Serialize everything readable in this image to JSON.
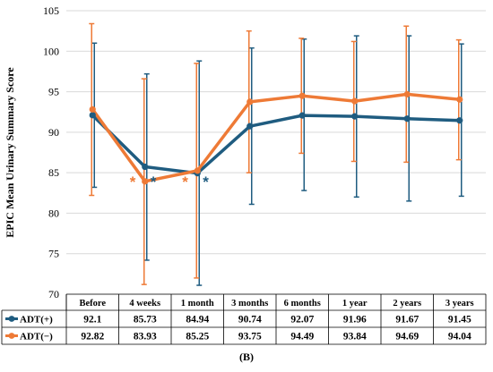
{
  "chart_data": {
    "type": "line",
    "ylabel": "EPIC Mean Urinary Summary Score",
    "xlabel": "",
    "ylim": [
      70,
      105
    ],
    "yticks": [
      70,
      75,
      80,
      85,
      90,
      95,
      100,
      105
    ],
    "grid": true,
    "categories": [
      "Before",
      "4 weeks",
      "1 month",
      "3 months",
      "6 months",
      "1 year",
      "2 years",
      "3 years"
    ],
    "series": [
      {
        "name": "ADT(+)",
        "color": "#1f5c80",
        "values": [
          92.1,
          85.73,
          84.94,
          90.74,
          92.07,
          91.96,
          91.67,
          91.45
        ],
        "value_labels": [
          "92.1",
          "85.73",
          "84.94",
          "90.74",
          "92.07",
          "91.96",
          "91.67",
          "91.45"
        ],
        "error_upper": [
          101.0,
          97.2,
          98.8,
          100.4,
          101.5,
          101.9,
          101.9,
          100.9
        ],
        "error_lower": [
          83.2,
          74.2,
          71.1,
          81.1,
          82.8,
          82.0,
          81.5,
          82.1
        ]
      },
      {
        "name": "ADT(−)",
        "color": "#ee7a36",
        "values": [
          92.82,
          83.93,
          85.25,
          93.75,
          94.49,
          93.84,
          94.69,
          94.04
        ],
        "value_labels": [
          "92.82",
          "83.93",
          "85.25",
          "93.75",
          "94.49",
          "93.84",
          "94.69",
          "94.04"
        ],
        "error_upper": [
          103.4,
          96.6,
          98.5,
          102.5,
          101.6,
          101.2,
          103.1,
          101.4
        ],
        "error_lower": [
          82.2,
          71.2,
          72.0,
          85.0,
          87.4,
          86.4,
          86.3,
          86.6
        ]
      }
    ],
    "annotations": [
      {
        "text": "*",
        "series": "ADT(−)",
        "category": "4 weeks"
      },
      {
        "text": "*",
        "series": "ADT(+)",
        "category": "4 weeks"
      },
      {
        "text": "*",
        "series": "ADT(−)",
        "category": "1 month"
      },
      {
        "text": "*",
        "series": "ADT(+)",
        "category": "1 month"
      }
    ],
    "data_table": true
  },
  "panel_label": "(B)"
}
